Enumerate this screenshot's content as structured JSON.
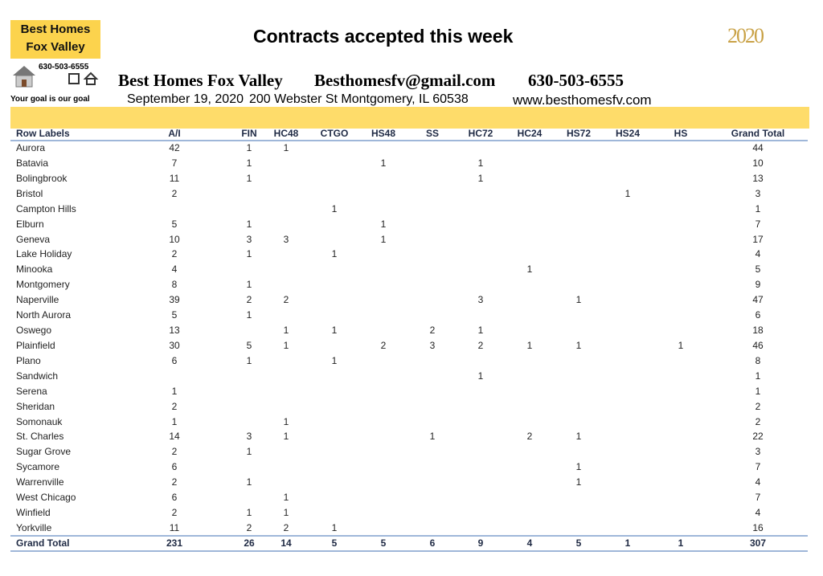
{
  "logo": {
    "line1": "Best Homes",
    "line2": "Fox Valley",
    "phone": "630-503-6555",
    "tagline": "Your goal is our goal"
  },
  "title": "Contracts accepted this week",
  "year_badge": "2020",
  "info": {
    "company": "Best Homes Fox Valley",
    "email": "Besthomesfv@gmail.com",
    "phone": "630-503-6555",
    "date": "September 19, 2020",
    "address": "200 Webster St Montgomery, IL 60538",
    "website": "www.besthomesfv.com"
  },
  "table": {
    "columns": [
      "Row Labels",
      "A/I",
      "FIN",
      "HC48",
      "CTGO",
      "HS48",
      "SS",
      "HC72",
      "HC24",
      "HS72",
      "HS24",
      "HS",
      "Grand Total"
    ],
    "rows": [
      [
        "Aurora",
        42,
        1,
        1,
        null,
        null,
        null,
        null,
        null,
        null,
        null,
        null,
        44
      ],
      [
        "Batavia",
        7,
        1,
        null,
        null,
        1,
        null,
        1,
        null,
        null,
        null,
        null,
        10
      ],
      [
        "Bolingbrook",
        11,
        1,
        null,
        null,
        null,
        null,
        1,
        null,
        null,
        null,
        null,
        13
      ],
      [
        "Bristol",
        2,
        null,
        null,
        null,
        null,
        null,
        null,
        null,
        null,
        1,
        null,
        3
      ],
      [
        "Campton Hills",
        null,
        null,
        null,
        1,
        null,
        null,
        null,
        null,
        null,
        null,
        null,
        1
      ],
      [
        "Elburn",
        5,
        1,
        null,
        null,
        1,
        null,
        null,
        null,
        null,
        null,
        null,
        7
      ],
      [
        "Geneva",
        10,
        3,
        3,
        null,
        1,
        null,
        null,
        null,
        null,
        null,
        null,
        17
      ],
      [
        "Lake Holiday",
        2,
        1,
        null,
        1,
        null,
        null,
        null,
        null,
        null,
        null,
        null,
        4
      ],
      [
        "Minooka",
        4,
        null,
        null,
        null,
        null,
        null,
        null,
        1,
        null,
        null,
        null,
        5
      ],
      [
        "Montgomery",
        8,
        1,
        null,
        null,
        null,
        null,
        null,
        null,
        null,
        null,
        null,
        9
      ],
      [
        "Naperville",
        39,
        2,
        2,
        null,
        null,
        null,
        3,
        null,
        1,
        null,
        null,
        47
      ],
      [
        "North Aurora",
        5,
        1,
        null,
        null,
        null,
        null,
        null,
        null,
        null,
        null,
        null,
        6
      ],
      [
        "Oswego",
        13,
        null,
        1,
        1,
        null,
        2,
        1,
        null,
        null,
        null,
        null,
        18
      ],
      [
        "Plainfield",
        30,
        5,
        1,
        null,
        2,
        3,
        2,
        1,
        1,
        null,
        1,
        46
      ],
      [
        "Plano",
        6,
        1,
        null,
        1,
        null,
        null,
        null,
        null,
        null,
        null,
        null,
        8
      ],
      [
        "Sandwich",
        null,
        null,
        null,
        null,
        null,
        null,
        1,
        null,
        null,
        null,
        null,
        1
      ],
      [
        "Serena",
        1,
        null,
        null,
        null,
        null,
        null,
        null,
        null,
        null,
        null,
        null,
        1
      ],
      [
        "Sheridan",
        2,
        null,
        null,
        null,
        null,
        null,
        null,
        null,
        null,
        null,
        null,
        2
      ],
      [
        "Somonauk",
        1,
        null,
        1,
        null,
        null,
        null,
        null,
        null,
        null,
        null,
        null,
        2
      ],
      [
        "St. Charles",
        14,
        3,
        1,
        null,
        null,
        1,
        null,
        2,
        1,
        null,
        null,
        22
      ],
      [
        "Sugar Grove",
        2,
        1,
        null,
        null,
        null,
        null,
        null,
        null,
        null,
        null,
        null,
        3
      ],
      [
        "Sycamore",
        6,
        null,
        null,
        null,
        null,
        null,
        null,
        null,
        1,
        null,
        null,
        7
      ],
      [
        "Warrenville",
        2,
        1,
        null,
        null,
        null,
        null,
        null,
        null,
        1,
        null,
        null,
        4
      ],
      [
        "West Chicago",
        6,
        null,
        1,
        null,
        null,
        null,
        null,
        null,
        null,
        null,
        null,
        7
      ],
      [
        "Winfield",
        2,
        1,
        1,
        null,
        null,
        null,
        null,
        null,
        null,
        null,
        null,
        4
      ],
      [
        "Yorkville",
        11,
        2,
        2,
        1,
        null,
        null,
        null,
        null,
        null,
        null,
        null,
        16
      ],
      [
        "Grand Total",
        231,
        26,
        14,
        5,
        5,
        6,
        9,
        4,
        5,
        1,
        1,
        307
      ]
    ]
  }
}
